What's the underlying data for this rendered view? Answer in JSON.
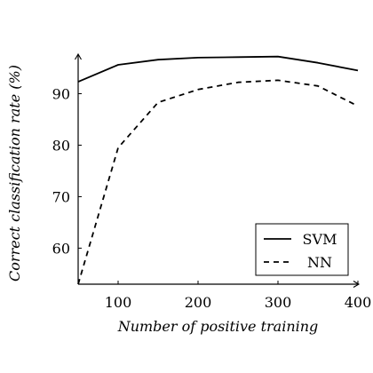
{
  "chart_data": {
    "type": "line",
    "title": "",
    "xlabel": "Number of positive training",
    "ylabel": "Correct classification rate (%)",
    "xlim": [
      50,
      400
    ],
    "ylim": [
      53,
      97.5
    ],
    "xticks": [
      100,
      200,
      300,
      400
    ],
    "yticks": [
      60,
      70,
      80,
      90
    ],
    "grid": false,
    "legend_position": "bottom-right",
    "series": [
      {
        "name": "SVM",
        "style": "solid",
        "x": [
          50,
          100,
          150,
          200,
          250,
          300,
          350,
          400
        ],
        "y": [
          92.3,
          95.6,
          96.6,
          97.0,
          97.1,
          97.2,
          96.0,
          94.5
        ]
      },
      {
        "name": "NN",
        "style": "dashed",
        "x": [
          50,
          100,
          150,
          200,
          250,
          300,
          350,
          400
        ],
        "y": [
          53.0,
          79.5,
          88.3,
          90.8,
          92.2,
          92.6,
          91.5,
          87.6
        ]
      }
    ]
  }
}
